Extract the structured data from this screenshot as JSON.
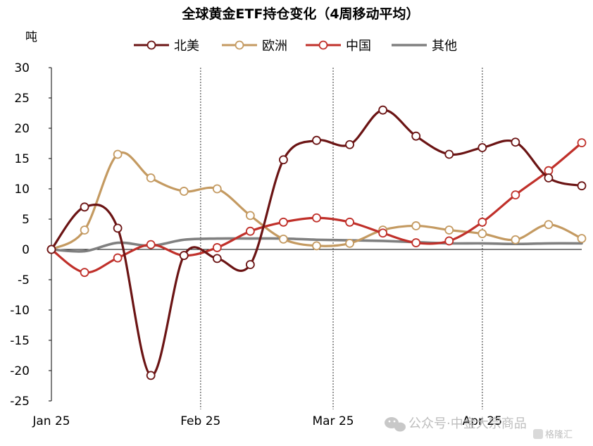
{
  "chart_data": {
    "type": "line",
    "title": "全球黄金ETF持仓变化（4周移动平均）",
    "ylabel": "吨",
    "ylim": [
      -25,
      30
    ],
    "yticks": [
      30,
      25,
      20,
      15,
      10,
      5,
      0,
      -5,
      -10,
      -15,
      -20,
      -25
    ],
    "x_count": 17,
    "xlabels": [
      {
        "label": "Jan 25",
        "x": 0
      },
      {
        "label": "Feb 25",
        "x": 4.5
      },
      {
        "label": "Mar 25",
        "x": 8.5
      },
      {
        "label": "Apr 25",
        "x": 13
      }
    ],
    "vlines": [
      4.5,
      8.5,
      13
    ],
    "legend_position": "top",
    "grid": false,
    "series": [
      {
        "name": "北美",
        "color": "#6b1414",
        "marker": true,
        "values": [
          0,
          7,
          3.5,
          -20.8,
          -1,
          -1.5,
          -2.5,
          14.8,
          18,
          17.3,
          23,
          18.7,
          15.7,
          16.8,
          17.7,
          11.8,
          10.5
        ]
      },
      {
        "name": "欧洲",
        "color": "#c49a61",
        "marker": true,
        "values": [
          0,
          3.2,
          15.7,
          11.8,
          9.6,
          10,
          5.6,
          1.7,
          0.6,
          1,
          3.2,
          3.9,
          3.2,
          2.6,
          1.6,
          4.1,
          1.8
        ]
      },
      {
        "name": "中国",
        "color": "#c0302a",
        "marker": true,
        "values": [
          0,
          -3.8,
          -1.4,
          0.8,
          -1,
          0.3,
          3,
          4.5,
          5.2,
          4.5,
          2.7,
          1.1,
          1.4,
          4.5,
          9,
          13,
          17.6
        ]
      },
      {
        "name": "其他",
        "color": "#808080",
        "marker": false,
        "values": [
          0,
          -0.3,
          1.1,
          0.6,
          1.6,
          1.8,
          1.8,
          1.8,
          1.6,
          1.5,
          1.4,
          1.2,
          1,
          1,
          0.9,
          1,
          1
        ]
      }
    ]
  },
  "watermark": {
    "text": "公众号·中金大宗商品",
    "badge": "格隆汇"
  }
}
